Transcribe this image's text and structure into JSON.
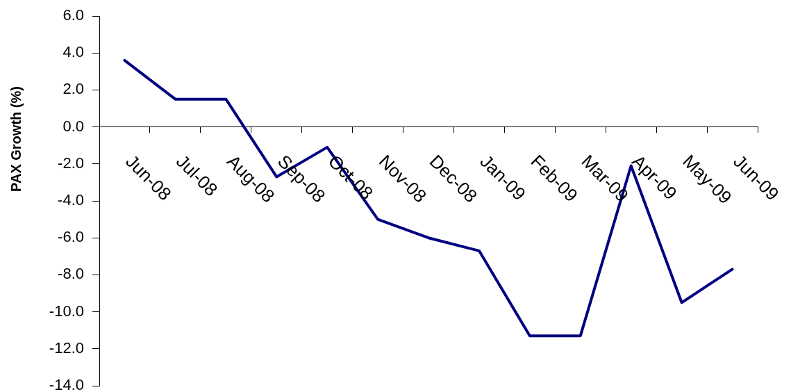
{
  "chart_data": {
    "type": "line",
    "ylabel": "PAX Growth (%)",
    "categories": [
      "Jun-08",
      "Jul-08",
      "Aug-08",
      "Sep-08",
      "Oct-08",
      "Nov-08",
      "Dec-08",
      "Jan-09",
      "Feb-09",
      "Mar-09",
      "Apr-09",
      "May-09",
      "Jun-09"
    ],
    "series": [
      {
        "color": "#000080",
        "values": [
          3.6,
          1.5,
          1.5,
          -2.7,
          -1.1,
          -5.0,
          -6.0,
          -6.7,
          -11.3,
          -11.3,
          -2.1,
          -9.5,
          -7.7
        ]
      }
    ],
    "ylim": [
      -14,
      6
    ],
    "yticks": [
      {
        "value": -14,
        "label": "-14.0"
      },
      {
        "value": -12,
        "label": "-12.0"
      },
      {
        "value": -10,
        "label": "-10.0"
      },
      {
        "value": -8,
        "label": "-8.0"
      },
      {
        "value": -6,
        "label": "-6.0"
      },
      {
        "value": -4,
        "label": "-4.0"
      },
      {
        "value": -2,
        "label": "-2.0"
      },
      {
        "value": 0,
        "label": "0.0"
      },
      {
        "value": 2,
        "label": "2.0"
      },
      {
        "value": 4,
        "label": "4.0"
      },
      {
        "value": 6,
        "label": "6.0"
      }
    ],
    "grid": false,
    "legend": false,
    "marker": "none",
    "line_style": "solid"
  }
}
